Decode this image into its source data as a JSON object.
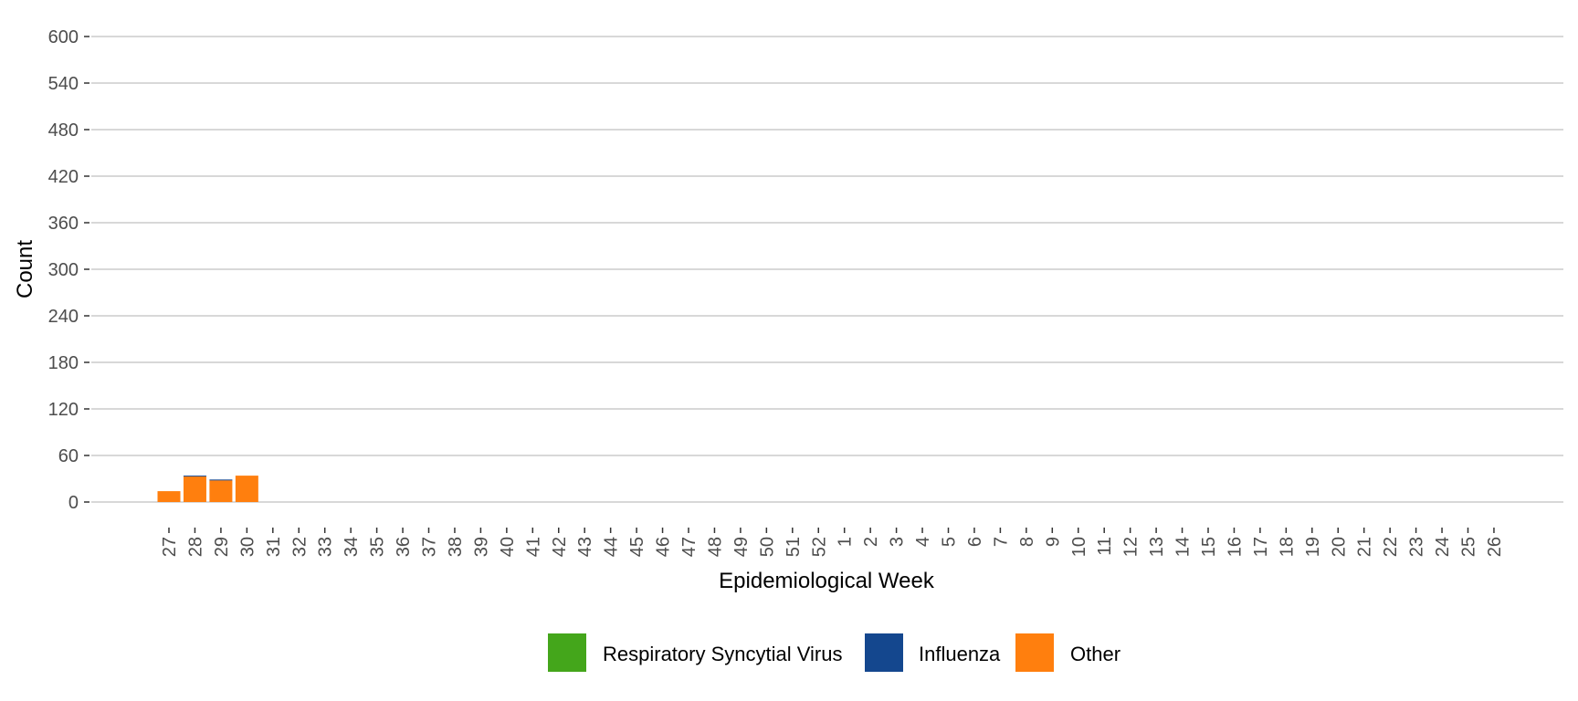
{
  "chart_data": {
    "type": "bar",
    "stacked": true,
    "xlabel": "Epidemiological Week",
    "ylabel": "Count",
    "ylim": [
      0,
      600
    ],
    "yticks": [
      0,
      60,
      120,
      180,
      240,
      300,
      360,
      420,
      480,
      540,
      600
    ],
    "grid": true,
    "legend_position": "bottom",
    "categories": [
      "27",
      "28",
      "29",
      "30",
      "31",
      "32",
      "33",
      "34",
      "35",
      "36",
      "37",
      "38",
      "39",
      "40",
      "41",
      "42",
      "43",
      "44",
      "45",
      "46",
      "47",
      "48",
      "49",
      "50",
      "51",
      "52",
      "1",
      "2",
      "3",
      "4",
      "5",
      "6",
      "7",
      "8",
      "9",
      "10",
      "11",
      "12",
      "13",
      "14",
      "15",
      "16",
      "17",
      "18",
      "19",
      "20",
      "21",
      "22",
      "23",
      "24",
      "25",
      "26"
    ],
    "series": [
      {
        "name": "Other",
        "color": "#ff7f0e",
        "values": [
          14,
          33,
          28,
          34,
          0,
          0,
          0,
          0,
          0,
          0,
          0,
          0,
          0,
          0,
          0,
          0,
          0,
          0,
          0,
          0,
          0,
          0,
          0,
          0,
          0,
          0,
          0,
          0,
          0,
          0,
          0,
          0,
          0,
          0,
          0,
          0,
          0,
          0,
          0,
          0,
          0,
          0,
          0,
          0,
          0,
          0,
          0,
          0,
          0,
          0,
          0,
          0
        ]
      },
      {
        "name": "Influenza",
        "color": "#14478e",
        "values": [
          0,
          1,
          1,
          0,
          0,
          0,
          0,
          0,
          0,
          0,
          0,
          0,
          0,
          0,
          0,
          0,
          0,
          0,
          0,
          0,
          0,
          0,
          0,
          0,
          0,
          0,
          0,
          0,
          0,
          0,
          0,
          0,
          0,
          0,
          0,
          0,
          0,
          0,
          0,
          0,
          0,
          0,
          0,
          0,
          0,
          0,
          0,
          0,
          0,
          0,
          0,
          0
        ]
      },
      {
        "name": "Respiratory Syncytial Virus",
        "color": "#44a61b",
        "values": [
          0,
          0,
          0,
          0,
          0,
          0,
          0,
          0,
          0,
          0,
          0,
          0,
          0,
          0,
          0,
          0,
          0,
          0,
          0,
          0,
          0,
          0,
          0,
          0,
          0,
          0,
          0,
          0,
          0,
          0,
          0,
          0,
          0,
          0,
          0,
          0,
          0,
          0,
          0,
          0,
          0,
          0,
          0,
          0,
          0,
          0,
          0,
          0,
          0,
          0,
          0,
          0
        ]
      }
    ],
    "legend": [
      {
        "label": "Respiratory Syncytial Virus",
        "color": "#44a61b"
      },
      {
        "label": "Influenza",
        "color": "#14478e"
      },
      {
        "label": "Other",
        "color": "#ff7f0e"
      }
    ]
  }
}
